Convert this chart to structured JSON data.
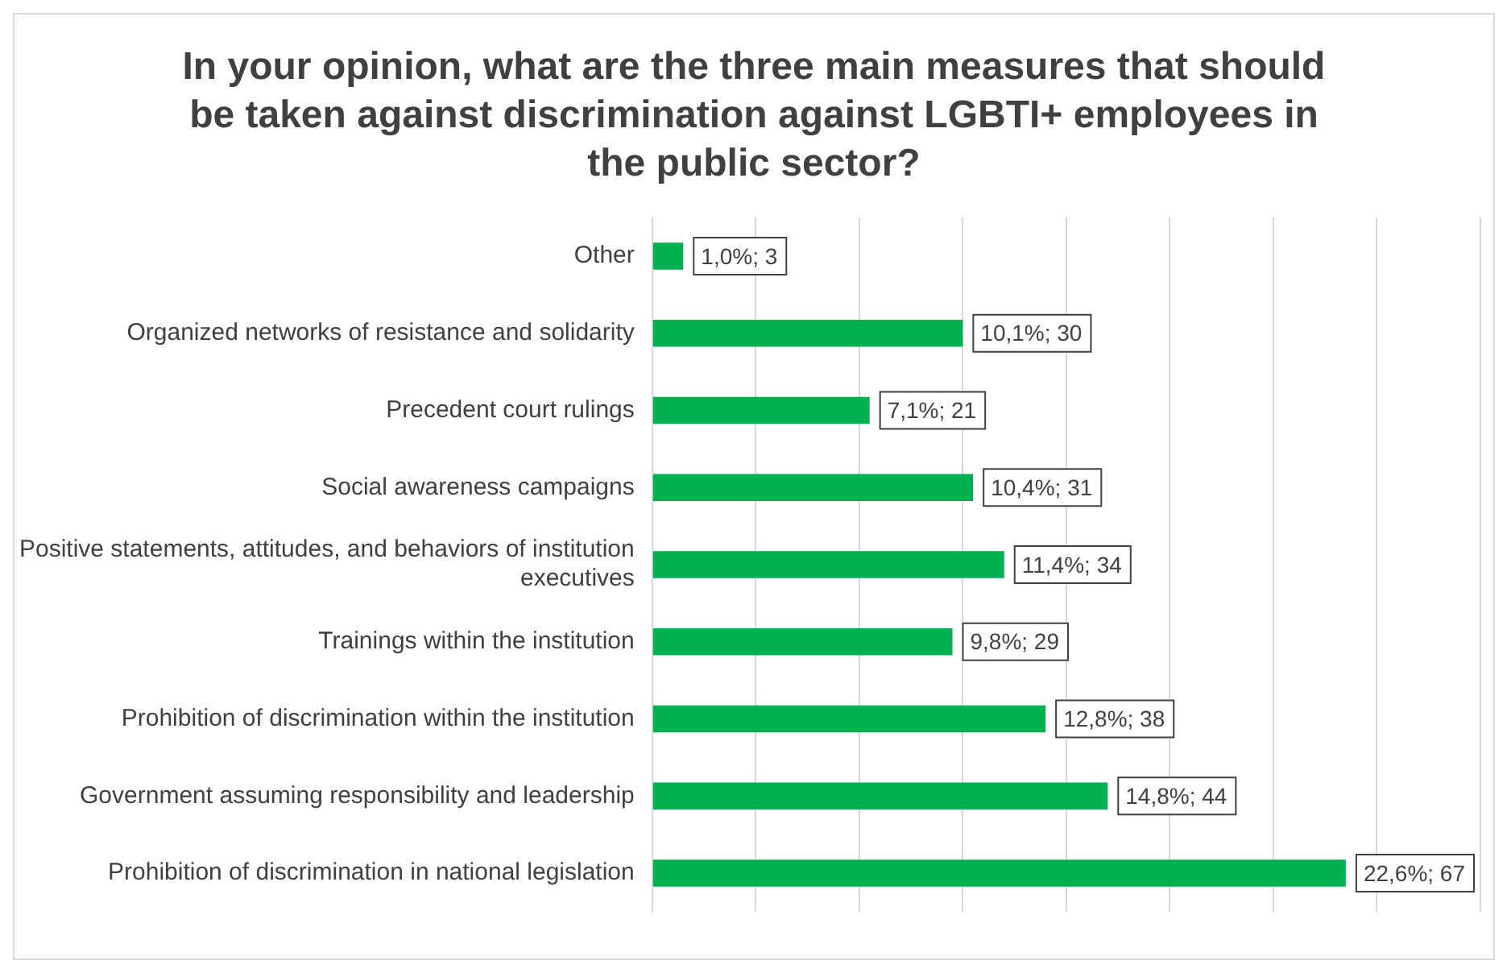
{
  "chart_data": {
    "type": "bar",
    "orientation": "horizontal",
    "title": "In your opinion, what are the three main measures that should be taken against discrimination against LGBTI+ employees in the public sector?",
    "categories": [
      "Other",
      "Organized networks of resistance and solidarity",
      "Precedent court rulings",
      "Social awareness campaigns",
      "Positive statements, attitudes, and behaviors of institution executives",
      "Trainings within the institution",
      "Prohibition of discrimination within the institution",
      "Government assuming responsibility and leadership",
      "Prohibition of discrimination in national legislation"
    ],
    "values": [
      3,
      30,
      21,
      31,
      34,
      29,
      38,
      44,
      67
    ],
    "value_labels": [
      "1,0%; 3",
      "10,1%; 30",
      "7,1%; 21",
      "10,4%; 31",
      "11,4%; 34",
      "9,8%; 29",
      "12,8%; 38",
      "14,8%; 44",
      "22,6%; 67"
    ],
    "color": "#00b050",
    "xlim": [
      0,
      80
    ],
    "xticks": [
      {
        "value": 0,
        "label": null
      },
      {
        "value": 10,
        "label": null
      },
      {
        "value": 20,
        "label": null
      },
      {
        "value": 30,
        "label": null
      },
      {
        "value": 40,
        "label": null
      },
      {
        "value": 50,
        "label": null
      },
      {
        "value": 60,
        "label": null
      },
      {
        "value": 70,
        "label": null
      },
      {
        "value": 80,
        "label": null
      }
    ],
    "grid": "x",
    "tick_labels": "y",
    "legend": false
  }
}
